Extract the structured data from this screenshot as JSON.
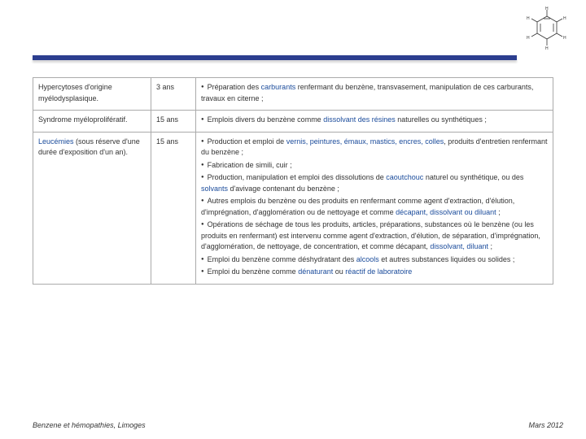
{
  "rows": [
    {
      "disease": "Hypercytoses d'origine myélodysplasique.",
      "delay": "3 ans",
      "items": [
        {
          "bullet": true,
          "pre": "Préparation des ",
          "link": "carburants",
          "post": " renfermant du benzène, transvasement, manipulation de ces carburants, travaux en citerne ;"
        }
      ]
    },
    {
      "disease": "Syndrome myéloprolifératif.",
      "delay": "15 ans",
      "items": [
        {
          "bullet": true,
          "pre": "Emplois divers du benzène comme ",
          "link": "dissolvant des résines",
          "post": " naturelles ou synthétiques ;"
        }
      ]
    },
    {
      "disease_pre": "Leucémies",
      "disease_post": " (sous réserve d'une durée d'exposition d'un an).",
      "delay": "15 ans",
      "items": [
        {
          "bullet": true,
          "pre": "Production et emploi de ",
          "link": "vernis, peintures, émaux, mastics, encres, colles",
          "post": ", produits d'entretien renfermant du benzène ;"
        },
        {
          "bullet": true,
          "pre": "Fabrication de simili, cuir ;"
        },
        {
          "bullet": true,
          "pre": "Production, manipulation et emploi des dissolutions de ",
          "link": "caoutchouc",
          "post": " naturel ou synthétique, ou des ",
          "link2": "solvants",
          "post2": " d'avivage contenant du benzène ;"
        },
        {
          "bullet": true,
          "pre": "Autres emplois du benzène ou des produits en renfermant comme agent d'extraction, d'élution, d'imprégnation, d'agglomération ou de nettoyage et comme ",
          "link": "décapant, dissolvant ou diluant",
          "post": " ;"
        },
        {
          "bullet": true,
          "pre": "Opérations de séchage de tous les produits, articles, préparations, substances où le benzène (ou les produits en renfermant) est intervenu comme agent d'extraction, d'élution, de séparation, d'imprégnation, d'agglomération, de nettoyage, de concentration, et comme décapant, ",
          "link": "dissolvant, diluant",
          "post": " ;"
        },
        {
          "bullet": true,
          "pre": "Emploi du benzène comme déshydratant des ",
          "link": "alcools",
          "post": " et autres substances liquides ou solides ;"
        },
        {
          "bullet": true,
          "pre": "Emploi du benzène comme ",
          "link": "dénaturant",
          "post": " ou ",
          "link2": "réactif de laboratoire",
          "post2": ""
        }
      ]
    }
  ],
  "footer": {
    "left": "Benzene et hémopathies, Limoges",
    "right": "Mars 2012"
  },
  "colors": {
    "bar": "#2c3e8f",
    "link": "#1a4b9b"
  }
}
